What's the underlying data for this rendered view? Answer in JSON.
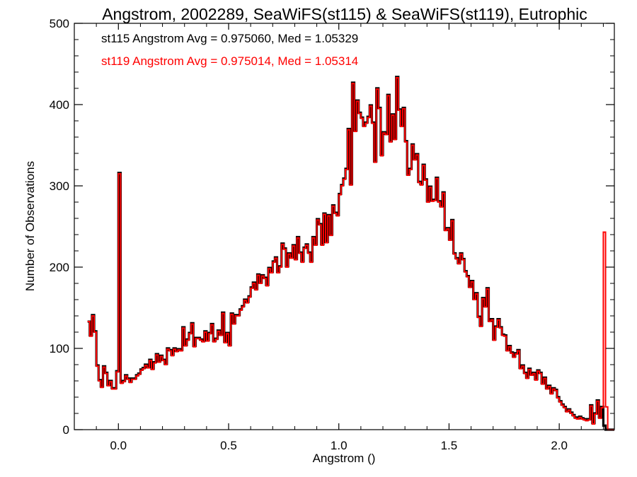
{
  "chart_data": {
    "type": "histogram-step",
    "title": "Angstrom, 2002289, SeaWiFS(st115) & SeaWiFS(st119), Eutrophic",
    "xlabel": "Angstrom ()",
    "ylabel": "Number of Observations",
    "xlim": [
      -0.2,
      2.25
    ],
    "ylim": [
      0,
      500
    ],
    "xticks": [
      0.0,
      0.5,
      1.0,
      1.5,
      2.0
    ],
    "xtick_labels": [
      "0.0",
      "0.5",
      "1.0",
      "1.5",
      "2.0"
    ],
    "yticks": [
      0,
      100,
      200,
      300,
      400,
      500
    ],
    "ytick_labels": [
      "0",
      "100",
      "200",
      "300",
      "400",
      "500"
    ],
    "bin_width": 0.01,
    "series": [
      {
        "name": "st115",
        "color": "#000000",
        "legend": "st115 Angstrom Avg = 0.975060, Med = 1.05329",
        "bin_starts": [
          -0.14,
          -0.13,
          -0.12,
          -0.11,
          -0.1,
          -0.09,
          -0.08,
          -0.07,
          -0.06,
          -0.05,
          -0.04,
          -0.03,
          -0.02,
          -0.01,
          0.0,
          0.01,
          0.02,
          0.03,
          0.04,
          0.05,
          0.06,
          0.07,
          0.08,
          0.09,
          0.1,
          0.11,
          0.12,
          0.13,
          0.14,
          0.15,
          0.16,
          0.17,
          0.18,
          0.19,
          0.2,
          0.21,
          0.22,
          0.23,
          0.24,
          0.25,
          0.26,
          0.27,
          0.28,
          0.29,
          0.3,
          0.31,
          0.32,
          0.33,
          0.34,
          0.35,
          0.36,
          0.37,
          0.38,
          0.39,
          0.4,
          0.41,
          0.42,
          0.43,
          0.44,
          0.45,
          0.46,
          0.47,
          0.48,
          0.49,
          0.5,
          0.51,
          0.52,
          0.53,
          0.54,
          0.55,
          0.56,
          0.57,
          0.58,
          0.59,
          0.6,
          0.61,
          0.62,
          0.63,
          0.64,
          0.65,
          0.66,
          0.67,
          0.68,
          0.69,
          0.7,
          0.71,
          0.72,
          0.73,
          0.74,
          0.75,
          0.76,
          0.77,
          0.78,
          0.79,
          0.8,
          0.81,
          0.82,
          0.83,
          0.84,
          0.85,
          0.86,
          0.87,
          0.88,
          0.89,
          0.9,
          0.91,
          0.92,
          0.93,
          0.94,
          0.95,
          0.96,
          0.97,
          0.98,
          0.99,
          1.0,
          1.01,
          1.02,
          1.03,
          1.04,
          1.05,
          1.06,
          1.07,
          1.08,
          1.09,
          1.1,
          1.11,
          1.12,
          1.13,
          1.14,
          1.15,
          1.16,
          1.17,
          1.18,
          1.19,
          1.2,
          1.21,
          1.22,
          1.23,
          1.24,
          1.25,
          1.26,
          1.27,
          1.28,
          1.29,
          1.3,
          1.31,
          1.32,
          1.33,
          1.34,
          1.35,
          1.36,
          1.37,
          1.38,
          1.39,
          1.4,
          1.41,
          1.42,
          1.43,
          1.44,
          1.45,
          1.46,
          1.47,
          1.48,
          1.49,
          1.5,
          1.51,
          1.52,
          1.53,
          1.54,
          1.55,
          1.56,
          1.57,
          1.58,
          1.59,
          1.6,
          1.61,
          1.62,
          1.63,
          1.64,
          1.65,
          1.66,
          1.67,
          1.68,
          1.69,
          1.7,
          1.71,
          1.72,
          1.73,
          1.74,
          1.75,
          1.76,
          1.77,
          1.78,
          1.79,
          1.8,
          1.81,
          1.82,
          1.83,
          1.84,
          1.85,
          1.86,
          1.87,
          1.88,
          1.89,
          1.9,
          1.91,
          1.92,
          1.93,
          1.94,
          1.95,
          1.96,
          1.97,
          1.98,
          1.99,
          2.0,
          2.01,
          2.02,
          2.03,
          2.04,
          2.05,
          2.06,
          2.07,
          2.08,
          2.09,
          2.1,
          2.11,
          2.12,
          2.13,
          2.14,
          2.15,
          2.16,
          2.17,
          2.18,
          2.19,
          2.2,
          2.21,
          2.22,
          2.23,
          2.24
        ],
        "values": [
          133,
          116,
          141,
          121,
          79,
          61,
          53,
          78,
          70,
          55,
          60,
          51,
          51,
          72,
          316,
          58,
          60,
          67,
          63,
          59,
          63,
          63,
          67,
          69,
          74,
          76,
          80,
          77,
          86,
          75,
          83,
          93,
          84,
          91,
          86,
          81,
          100,
          98,
          92,
          100,
          97,
          99,
          98,
          126,
          104,
          111,
          119,
          131,
          103,
          113,
          113,
          111,
          109,
          121,
          110,
          119,
          130,
          109,
          112,
          122,
          117,
          144,
          108,
          119,
          104,
          143,
          131,
          141,
          141,
          148,
          152,
          160,
          157,
          164,
          175,
          181,
          173,
          191,
          181,
          190,
          187,
          178,
          199,
          194,
          207,
          212,
          194,
          201,
          229,
          223,
          201,
          217,
          212,
          227,
          210,
          237,
          218,
          207,
          224,
          228,
          218,
          207,
          237,
          228,
          259,
          253,
          228,
          266,
          231,
          264,
          240,
          276,
          267,
          264,
          290,
          301,
          309,
          321,
          370,
          302,
          427,
          368,
          405,
          390,
          384,
          374,
          378,
          385,
          399,
          378,
          330,
          420,
          396,
          338,
          366,
          364,
          412,
          355,
          388,
          358,
          434,
          394,
          374,
          396,
          355,
          314,
          321,
          351,
          333,
          339,
          305,
          302,
          326,
          308,
          281,
          299,
          282,
          283,
          310,
          281,
          275,
          292,
          246,
          248,
          234,
          258,
          217,
          211,
          205,
          217,
          210,
          195,
          189,
          176,
          183,
          161,
          168,
          139,
          128,
          162,
          152,
          174,
          134,
          136,
          111,
          127,
          136,
          126,
          117,
          116,
          98,
          103,
          95,
          90,
          94,
          98,
          76,
          79,
          70,
          64,
          75,
          68,
          70,
          62,
          73,
          70,
          57,
          64,
          51,
          54,
          45,
          51,
          49,
          40,
          35,
          31,
          28,
          23,
          25,
          21,
          18,
          15,
          14,
          16,
          14,
          13,
          12,
          13,
          30,
          8,
          20,
          36,
          15,
          28,
          5,
          0,
          0,
          0,
          0,
          0,
          0,
          0,
          0,
          0
        ]
      },
      {
        "name": "st119",
        "color": "#ff0000",
        "legend": "st119 Angstrom Avg = 0.975014, Med = 1.05314",
        "bin_starts": [
          -0.14,
          -0.13,
          -0.12,
          -0.11,
          -0.1,
          -0.09,
          -0.08,
          -0.07,
          -0.06,
          -0.05,
          -0.04,
          -0.03,
          -0.02,
          -0.01,
          0.0,
          0.01,
          0.02,
          0.03,
          0.04,
          0.05,
          0.06,
          0.07,
          0.08,
          0.09,
          0.1,
          0.11,
          0.12,
          0.13,
          0.14,
          0.15,
          0.16,
          0.17,
          0.18,
          0.19,
          0.2,
          0.21,
          0.22,
          0.23,
          0.24,
          0.25,
          0.26,
          0.27,
          0.28,
          0.29,
          0.3,
          0.31,
          0.32,
          0.33,
          0.34,
          0.35,
          0.36,
          0.37,
          0.38,
          0.39,
          0.4,
          0.41,
          0.42,
          0.43,
          0.44,
          0.45,
          0.46,
          0.47,
          0.48,
          0.49,
          0.5,
          0.51,
          0.52,
          0.53,
          0.54,
          0.55,
          0.56,
          0.57,
          0.58,
          0.59,
          0.6,
          0.61,
          0.62,
          0.63,
          0.64,
          0.65,
          0.66,
          0.67,
          0.68,
          0.69,
          0.7,
          0.71,
          0.72,
          0.73,
          0.74,
          0.75,
          0.76,
          0.77,
          0.78,
          0.79,
          0.8,
          0.81,
          0.82,
          0.83,
          0.84,
          0.85,
          0.86,
          0.87,
          0.88,
          0.89,
          0.9,
          0.91,
          0.92,
          0.93,
          0.94,
          0.95,
          0.96,
          0.97,
          0.98,
          0.99,
          1.0,
          1.01,
          1.02,
          1.03,
          1.04,
          1.05,
          1.06,
          1.07,
          1.08,
          1.09,
          1.1,
          1.11,
          1.12,
          1.13,
          1.14,
          1.15,
          1.16,
          1.17,
          1.18,
          1.19,
          1.2,
          1.21,
          1.22,
          1.23,
          1.24,
          1.25,
          1.26,
          1.27,
          1.28,
          1.29,
          1.3,
          1.31,
          1.32,
          1.33,
          1.34,
          1.35,
          1.36,
          1.37,
          1.38,
          1.39,
          1.4,
          1.41,
          1.42,
          1.43,
          1.44,
          1.45,
          1.46,
          1.47,
          1.48,
          1.49,
          1.5,
          1.51,
          1.52,
          1.53,
          1.54,
          1.55,
          1.56,
          1.57,
          1.58,
          1.59,
          1.6,
          1.61,
          1.62,
          1.63,
          1.64,
          1.65,
          1.66,
          1.67,
          1.68,
          1.69,
          1.7,
          1.71,
          1.72,
          1.73,
          1.74,
          1.75,
          1.76,
          1.77,
          1.78,
          1.79,
          1.8,
          1.81,
          1.82,
          1.83,
          1.84,
          1.85,
          1.86,
          1.87,
          1.88,
          1.89,
          1.9,
          1.91,
          1.92,
          1.93,
          1.94,
          1.95,
          1.96,
          1.97,
          1.98,
          1.99,
          2.0,
          2.01,
          2.02,
          2.03,
          2.04,
          2.05,
          2.06,
          2.07,
          2.08,
          2.09,
          2.1,
          2.11,
          2.12,
          2.13,
          2.14,
          2.15,
          2.16,
          2.17,
          2.18,
          2.19,
          2.2,
          2.21,
          2.22,
          2.23,
          2.24
        ],
        "values": [
          133,
          115,
          140,
          120,
          78,
          60,
          52,
          77,
          69,
          54,
          59,
          50,
          50,
          71,
          315,
          57,
          59,
          66,
          62,
          58,
          62,
          62,
          66,
          68,
          73,
          75,
          79,
          76,
          85,
          74,
          82,
          92,
          83,
          90,
          85,
          80,
          99,
          97,
          91,
          99,
          96,
          98,
          97,
          125,
          103,
          110,
          118,
          130,
          102,
          112,
          112,
          110,
          108,
          120,
          109,
          118,
          129,
          108,
          111,
          121,
          116,
          143,
          107,
          118,
          103,
          142,
          130,
          140,
          140,
          147,
          151,
          159,
          156,
          163,
          174,
          180,
          172,
          190,
          180,
          189,
          186,
          177,
          198,
          193,
          206,
          211,
          193,
          200,
          228,
          222,
          200,
          216,
          211,
          226,
          209,
          236,
          217,
          206,
          223,
          227,
          217,
          206,
          236,
          227,
          258,
          252,
          227,
          265,
          230,
          263,
          239,
          275,
          266,
          263,
          289,
          300,
          308,
          320,
          369,
          301,
          426,
          367,
          404,
          389,
          383,
          373,
          377,
          384,
          398,
          377,
          329,
          419,
          395,
          337,
          365,
          363,
          411,
          354,
          387,
          357,
          433,
          393,
          373,
          395,
          354,
          313,
          320,
          350,
          332,
          338,
          304,
          301,
          325,
          307,
          280,
          298,
          281,
          282,
          309,
          280,
          274,
          291,
          245,
          247,
          233,
          257,
          216,
          210,
          204,
          216,
          209,
          194,
          188,
          175,
          182,
          160,
          167,
          138,
          127,
          161,
          151,
          173,
          133,
          135,
          110,
          126,
          135,
          125,
          116,
          115,
          97,
          102,
          94,
          89,
          93,
          97,
          75,
          78,
          69,
          63,
          74,
          67,
          69,
          61,
          72,
          69,
          56,
          63,
          50,
          53,
          44,
          50,
          48,
          39,
          34,
          30,
          27,
          22,
          24,
          20,
          17,
          14,
          13,
          15,
          13,
          12,
          11,
          12,
          29,
          7,
          19,
          35,
          14,
          27,
          243,
          28,
          0,
          0,
          0,
          0,
          0,
          0,
          0,
          0
        ]
      }
    ]
  }
}
